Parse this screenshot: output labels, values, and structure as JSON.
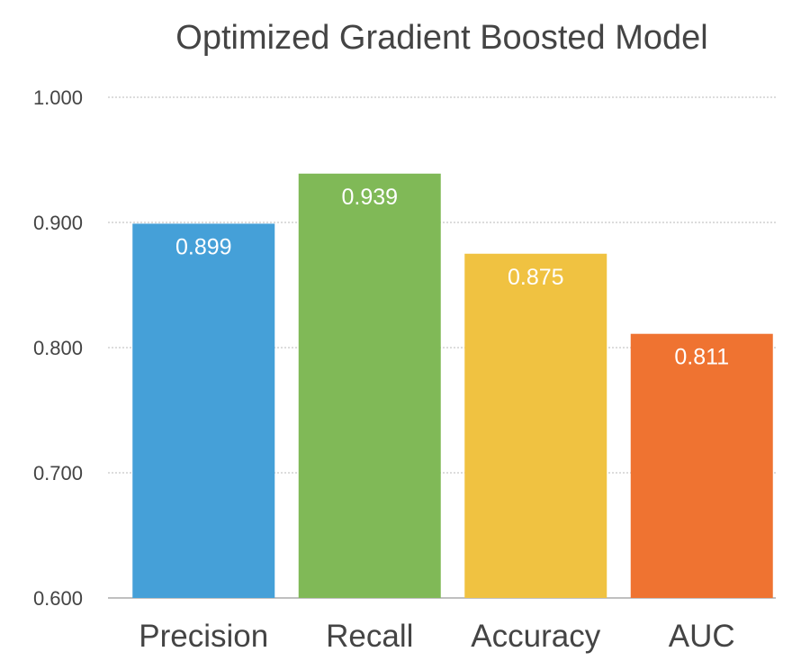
{
  "chart_data": {
    "type": "bar",
    "title": "Optimized Gradient Boosted Model",
    "categories": [
      "Precision",
      "Recall",
      "Accuracy",
      "AUC"
    ],
    "values": [
      0.899,
      0.939,
      0.875,
      0.811
    ],
    "value_labels": [
      "0.899",
      "0.939",
      "0.875",
      "0.811"
    ],
    "colors": [
      "#45a0d8",
      "#80b957",
      "#f0c241",
      "#ef7331"
    ],
    "ylim": [
      0.6,
      1.0
    ],
    "yticks": [
      0.6,
      0.7,
      0.8,
      0.9,
      1.0
    ],
    "ytick_labels": [
      "0.600",
      "0.700",
      "0.800",
      "0.900",
      "1.000"
    ],
    "grid": true,
    "xlabel": "",
    "ylabel": ""
  }
}
